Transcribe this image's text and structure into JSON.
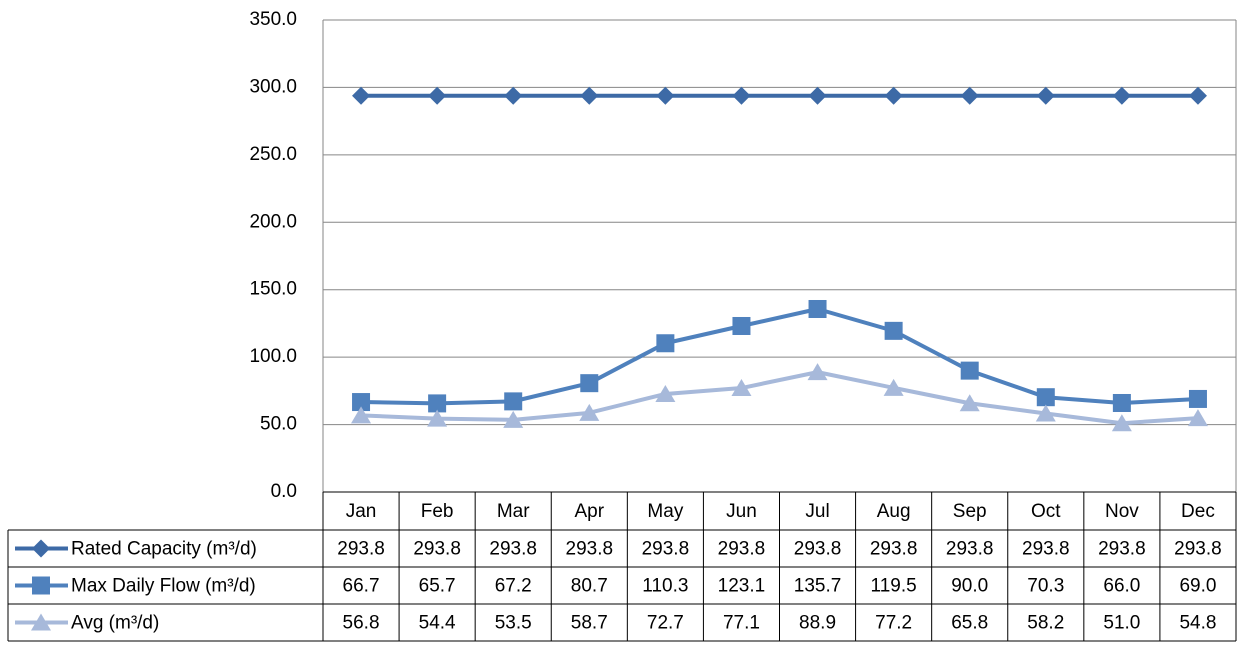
{
  "chart_data": {
    "type": "line",
    "categories": [
      "Jan",
      "Feb",
      "Mar",
      "Apr",
      "May",
      "Jun",
      "Jul",
      "Aug",
      "Sep",
      "Oct",
      "Nov",
      "Dec"
    ],
    "series": [
      {
        "name": "Rated Capacity (m³/d)",
        "color": "#3d6aa6",
        "marker": "diamond",
        "values": [
          293.8,
          293.8,
          293.8,
          293.8,
          293.8,
          293.8,
          293.8,
          293.8,
          293.8,
          293.8,
          293.8,
          293.8
        ],
        "value_labels": [
          "293.8",
          "293.8",
          "293.8",
          "293.8",
          "293.8",
          "293.8",
          "293.8",
          "293.8",
          "293.8",
          "293.8",
          "293.8",
          "293.8"
        ]
      },
      {
        "name": "Max Daily Flow (m³/d)",
        "color": "#4f81bd",
        "marker": "square",
        "values": [
          66.7,
          65.7,
          67.2,
          80.7,
          110.3,
          123.1,
          135.7,
          119.5,
          90.0,
          70.3,
          66.0,
          69.0
        ],
        "value_labels": [
          "66.7",
          "65.7",
          "67.2",
          "80.7",
          "110.3",
          "123.1",
          "135.7",
          "119.5",
          "90.0",
          "70.3",
          "66.0",
          "69.0"
        ]
      },
      {
        "name": "Avg (m³/d)",
        "color": "#a7b9da",
        "marker": "triangle",
        "values": [
          56.8,
          54.4,
          53.5,
          58.7,
          72.7,
          77.1,
          88.9,
          77.2,
          65.8,
          58.2,
          51.0,
          54.8
        ],
        "value_labels": [
          "56.8",
          "54.4",
          "53.5",
          "58.7",
          "72.7",
          "77.1",
          "88.9",
          "77.2",
          "65.8",
          "58.2",
          "51.0",
          "54.8"
        ]
      }
    ],
    "ylim": [
      0,
      350
    ],
    "yticks": [
      {
        "value": 0,
        "label": "0.0"
      },
      {
        "value": 50,
        "label": "50.0"
      },
      {
        "value": 100,
        "label": "100.0"
      },
      {
        "value": 150,
        "label": "150.0"
      },
      {
        "value": 200,
        "label": "200.0"
      },
      {
        "value": 250,
        "label": "250.0"
      },
      {
        "value": 300,
        "label": "300.0"
      },
      {
        "value": 350,
        "label": "350.0"
      }
    ],
    "grid": true
  }
}
